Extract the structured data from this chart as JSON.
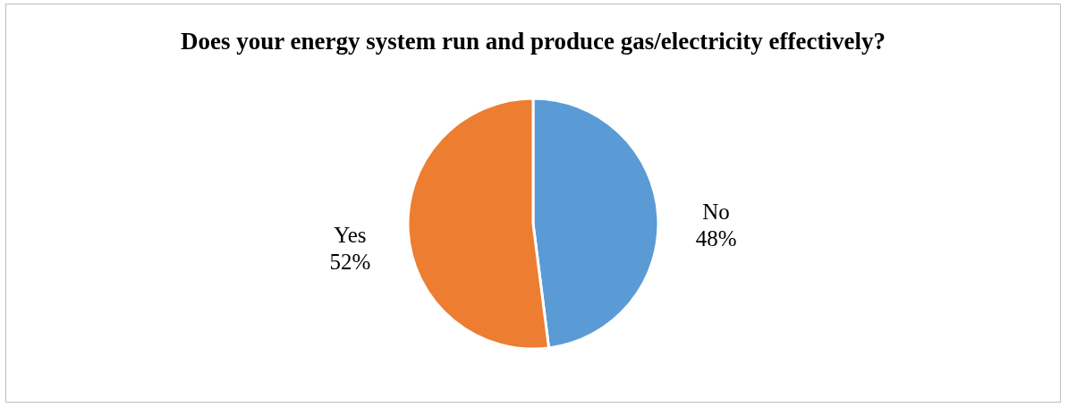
{
  "chart_data": {
    "type": "pie",
    "title": "Does your energy system run and produce gas/electricity effectively?",
    "categories": [
      "No",
      "Yes"
    ],
    "values": [
      48,
      52
    ],
    "value_labels": [
      "48%",
      "52%"
    ],
    "colors": [
      "#5b9bd5",
      "#ed7d31"
    ],
    "legend": false
  }
}
